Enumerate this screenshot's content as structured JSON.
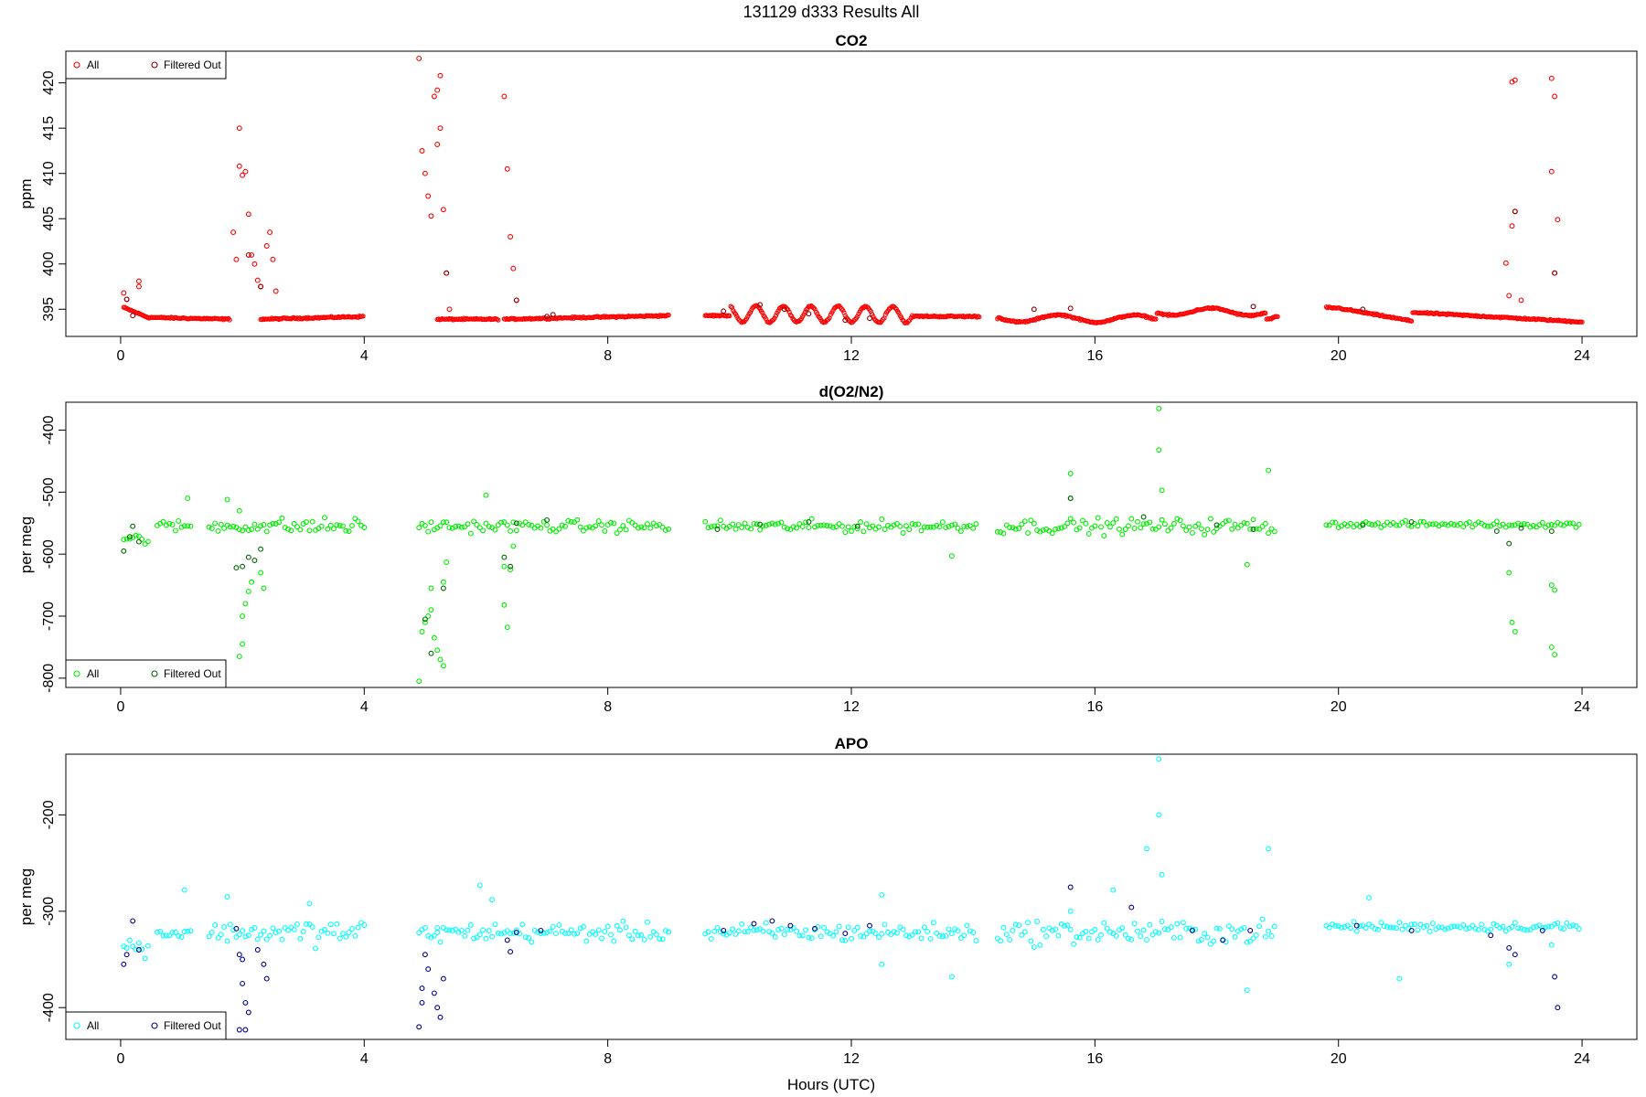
{
  "figure_title": "131129   d333   Results All",
  "x_axis_label": "Hours (UTC)",
  "chart_data": [
    {
      "type": "scatter",
      "title": "CO2",
      "xlabel": "Hours (UTC)",
      "ylabel": "ppm",
      "xlim": [
        -0.9,
        24.9
      ],
      "ylim": [
        392.0,
        423.5
      ],
      "xticks": [
        0,
        4,
        8,
        12,
        16,
        20,
        24
      ],
      "yticks": [
        395,
        400,
        405,
        410,
        415,
        420
      ],
      "grid": false,
      "legend": {
        "position": "top-left",
        "entries": [
          "All",
          "Filtered Out"
        ]
      },
      "colors": {
        "all": "#ff0000",
        "filtered": "#8b0000"
      },
      "baseline_segments": [
        [
          0.05,
          0.45,
          395.2,
          394.1
        ],
        [
          0.45,
          1.8,
          394.1,
          393.9
        ],
        [
          2.3,
          4.0,
          393.9,
          394.2
        ],
        [
          5.2,
          6.2,
          393.9,
          393.9
        ],
        [
          6.3,
          9.0,
          393.9,
          394.3
        ],
        [
          9.6,
          14.1,
          394.3,
          394.2
        ],
        [
          14.4,
          19.0,
          394.0,
          393.9
        ],
        [
          19.8,
          24.0,
          395.2,
          393.6
        ]
      ],
      "all_points": [
        [
          0.05,
          396.8
        ],
        [
          0.1,
          396.1
        ],
        [
          0.3,
          397.5
        ],
        [
          0.3,
          398.1
        ],
        [
          1.95,
          415.0
        ],
        [
          1.95,
          410.8
        ],
        [
          2.0,
          409.8
        ],
        [
          2.05,
          410.2
        ],
        [
          2.1,
          405.5
        ],
        [
          2.15,
          401.0
        ],
        [
          2.2,
          400.0
        ],
        [
          1.9,
          400.5
        ],
        [
          1.85,
          403.5
        ],
        [
          2.25,
          398.2
        ],
        [
          2.3,
          397.5
        ],
        [
          2.4,
          402.0
        ],
        [
          2.45,
          403.5
        ],
        [
          2.5,
          400.5
        ],
        [
          2.55,
          397.0
        ],
        [
          4.9,
          422.7
        ],
        [
          4.95,
          412.5
        ],
        [
          5.0,
          410.0
        ],
        [
          5.05,
          407.5
        ],
        [
          5.1,
          405.3
        ],
        [
          5.15,
          418.5
        ],
        [
          5.2,
          419.2
        ],
        [
          5.25,
          420.8
        ],
        [
          5.25,
          415.0
        ],
        [
          5.2,
          413.2
        ],
        [
          5.3,
          406.0
        ],
        [
          5.35,
          399.0
        ],
        [
          5.4,
          395.0
        ],
        [
          6.3,
          418.5
        ],
        [
          6.35,
          410.5
        ],
        [
          6.4,
          403.0
        ],
        [
          6.45,
          399.5
        ],
        [
          6.5,
          396.0
        ],
        [
          22.75,
          400.1
        ],
        [
          22.8,
          396.5
        ],
        [
          22.85,
          420.1
        ],
        [
          22.9,
          420.3
        ],
        [
          22.9,
          405.8
        ],
        [
          22.85,
          404.2
        ],
        [
          23.0,
          396.0
        ],
        [
          23.5,
          420.5
        ],
        [
          23.55,
          418.5
        ],
        [
          23.5,
          410.2
        ],
        [
          23.6,
          404.9
        ],
        [
          23.55,
          399.0
        ]
      ],
      "filtered_points": [
        [
          0.1,
          396.1
        ],
        [
          0.2,
          394.3
        ],
        [
          2.1,
          401.0
        ],
        [
          2.3,
          397.5
        ],
        [
          5.35,
          399.0
        ],
        [
          6.5,
          396.0
        ],
        [
          7.0,
          394.2
        ],
        [
          7.1,
          394.4
        ],
        [
          9.9,
          394.8
        ],
        [
          10.5,
          395.5
        ],
        [
          10.9,
          395.0
        ],
        [
          11.3,
          394.5
        ],
        [
          11.9,
          393.8
        ],
        [
          12.3,
          394.0
        ],
        [
          15.0,
          395.0
        ],
        [
          15.6,
          395.1
        ],
        [
          18.6,
          395.3
        ],
        [
          20.4,
          395.0
        ],
        [
          22.9,
          405.8
        ],
        [
          23.55,
          399.0
        ]
      ]
    },
    {
      "type": "scatter",
      "title": "d(O2/N2)",
      "xlabel": "Hours (UTC)",
      "ylabel": "per meg",
      "xlim": [
        -0.9,
        24.9
      ],
      "ylim": [
        -815,
        -355
      ],
      "xticks": [
        0,
        4,
        8,
        12,
        16,
        20,
        24
      ],
      "yticks": [
        -800,
        -700,
        -600,
        -500,
        -400
      ],
      "grid": false,
      "legend": {
        "position": "bottom-left",
        "entries": [
          "All",
          "Filtered Out"
        ]
      },
      "colors": {
        "all": "#00ee00",
        "filtered": "#006400"
      },
      "all_points": [
        [
          1.1,
          -510
        ],
        [
          1.75,
          -512
        ],
        [
          1.95,
          -530
        ],
        [
          1.95,
          -765
        ],
        [
          2.0,
          -745
        ],
        [
          2.0,
          -700
        ],
        [
          2.05,
          -680
        ],
        [
          2.1,
          -660
        ],
        [
          2.15,
          -645
        ],
        [
          2.3,
          -630
        ],
        [
          2.35,
          -655
        ],
        [
          4.9,
          -805
        ],
        [
          4.95,
          -725
        ],
        [
          5.0,
          -710
        ],
        [
          5.05,
          -700
        ],
        [
          5.1,
          -690
        ],
        [
          5.1,
          -655
        ],
        [
          5.15,
          -735
        ],
        [
          5.2,
          -755
        ],
        [
          5.25,
          -770
        ],
        [
          5.3,
          -780
        ],
        [
          5.3,
          -645
        ],
        [
          5.35,
          -613
        ],
        [
          6.0,
          -505
        ],
        [
          6.3,
          -620
        ],
        [
          6.3,
          -682
        ],
        [
          6.35,
          -718
        ],
        [
          6.4,
          -625
        ],
        [
          6.45,
          -587
        ],
        [
          13.65,
          -603
        ],
        [
          15.6,
          -470
        ],
        [
          15.6,
          -510
        ],
        [
          17.05,
          -365
        ],
        [
          17.05,
          -432
        ],
        [
          17.1,
          -497
        ],
        [
          18.5,
          -617
        ],
        [
          18.85,
          -465
        ],
        [
          22.8,
          -630
        ],
        [
          22.85,
          -710
        ],
        [
          22.9,
          -725
        ],
        [
          23.5,
          -650
        ],
        [
          23.55,
          -658
        ],
        [
          23.5,
          -750
        ],
        [
          23.55,
          -762
        ]
      ],
      "filtered_points": [
        [
          0.05,
          -595
        ],
        [
          0.15,
          -572
        ],
        [
          0.2,
          -555
        ],
        [
          0.3,
          -580
        ],
        [
          1.9,
          -622
        ],
        [
          2.0,
          -620
        ],
        [
          2.1,
          -605
        ],
        [
          2.2,
          -610
        ],
        [
          2.3,
          -592
        ],
        [
          5.0,
          -705
        ],
        [
          5.1,
          -760
        ],
        [
          5.3,
          -655
        ],
        [
          6.3,
          -605
        ],
        [
          6.4,
          -620
        ],
        [
          6.5,
          -550
        ],
        [
          7.0,
          -545
        ],
        [
          9.8,
          -560
        ],
        [
          10.5,
          -552
        ],
        [
          11.3,
          -548
        ],
        [
          12.1,
          -555
        ],
        [
          15.6,
          -510
        ],
        [
          16.8,
          -540
        ],
        [
          18.0,
          -553
        ],
        [
          18.6,
          -560
        ],
        [
          20.4,
          -553
        ],
        [
          21.2,
          -548
        ],
        [
          22.6,
          -563
        ],
        [
          22.8,
          -583
        ],
        [
          23.0,
          -558
        ],
        [
          23.5,
          -563
        ]
      ]
    },
    {
      "type": "scatter",
      "title": "APO",
      "xlabel": "Hours (UTC)",
      "ylabel": "per meg",
      "xlim": [
        -0.9,
        24.9
      ],
      "ylim": [
        -433,
        -137
      ],
      "xticks": [
        0,
        4,
        8,
        12,
        16,
        20,
        24
      ],
      "yticks": [
        -400,
        -300,
        -200
      ],
      "grid": false,
      "legend": {
        "position": "bottom-left",
        "entries": [
          "All",
          "Filtered Out"
        ]
      },
      "colors": {
        "all": "#00ffff",
        "filtered": "#00008b"
      },
      "all_points": [
        [
          1.05,
          -278
        ],
        [
          1.75,
          -285
        ],
        [
          3.1,
          -292
        ],
        [
          5.2,
          -322
        ],
        [
          5.9,
          -273
        ],
        [
          6.1,
          -288
        ],
        [
          12.5,
          -355
        ],
        [
          12.5,
          -283
        ],
        [
          13.65,
          -368
        ],
        [
          15.6,
          -300
        ],
        [
          16.3,
          -278
        ],
        [
          16.85,
          -235
        ],
        [
          17.05,
          -142
        ],
        [
          17.05,
          -200
        ],
        [
          17.1,
          -262
        ],
        [
          18.5,
          -382
        ],
        [
          18.85,
          -235
        ],
        [
          20.5,
          -286
        ],
        [
          21.0,
          -370
        ],
        [
          22.8,
          -355
        ],
        [
          23.5,
          -335
        ]
      ],
      "filtered_points": [
        [
          0.05,
          -355
        ],
        [
          0.1,
          -345
        ],
        [
          0.2,
          -310
        ],
        [
          0.3,
          -340
        ],
        [
          1.9,
          -318
        ],
        [
          1.95,
          -345
        ],
        [
          2.0,
          -350
        ],
        [
          2.0,
          -375
        ],
        [
          2.05,
          -395
        ],
        [
          2.1,
          -405
        ],
        [
          2.25,
          -340
        ],
        [
          2.35,
          -355
        ],
        [
          2.4,
          -370
        ],
        [
          1.95,
          -423
        ],
        [
          2.05,
          -423
        ],
        [
          4.9,
          -420
        ],
        [
          4.95,
          -395
        ],
        [
          4.95,
          -380
        ],
        [
          5.0,
          -345
        ],
        [
          5.05,
          -360
        ],
        [
          5.15,
          -385
        ],
        [
          5.2,
          -400
        ],
        [
          5.25,
          -410
        ],
        [
          5.3,
          -370
        ],
        [
          6.35,
          -330
        ],
        [
          6.4,
          -342
        ],
        [
          6.5,
          -322
        ],
        [
          6.9,
          -320
        ],
        [
          9.9,
          -320
        ],
        [
          10.4,
          -313
        ],
        [
          10.7,
          -310
        ],
        [
          11.0,
          -315
        ],
        [
          11.4,
          -318
        ],
        [
          11.9,
          -323
        ],
        [
          12.3,
          -315
        ],
        [
          15.6,
          -275
        ],
        [
          16.6,
          -296
        ],
        [
          17.6,
          -320
        ],
        [
          18.1,
          -330
        ],
        [
          18.55,
          -320
        ],
        [
          20.3,
          -315
        ],
        [
          21.2,
          -320
        ],
        [
          22.5,
          -325
        ],
        [
          22.8,
          -338
        ],
        [
          22.9,
          -345
        ],
        [
          23.35,
          -320
        ],
        [
          23.55,
          -368
        ],
        [
          23.6,
          -400
        ]
      ]
    }
  ]
}
